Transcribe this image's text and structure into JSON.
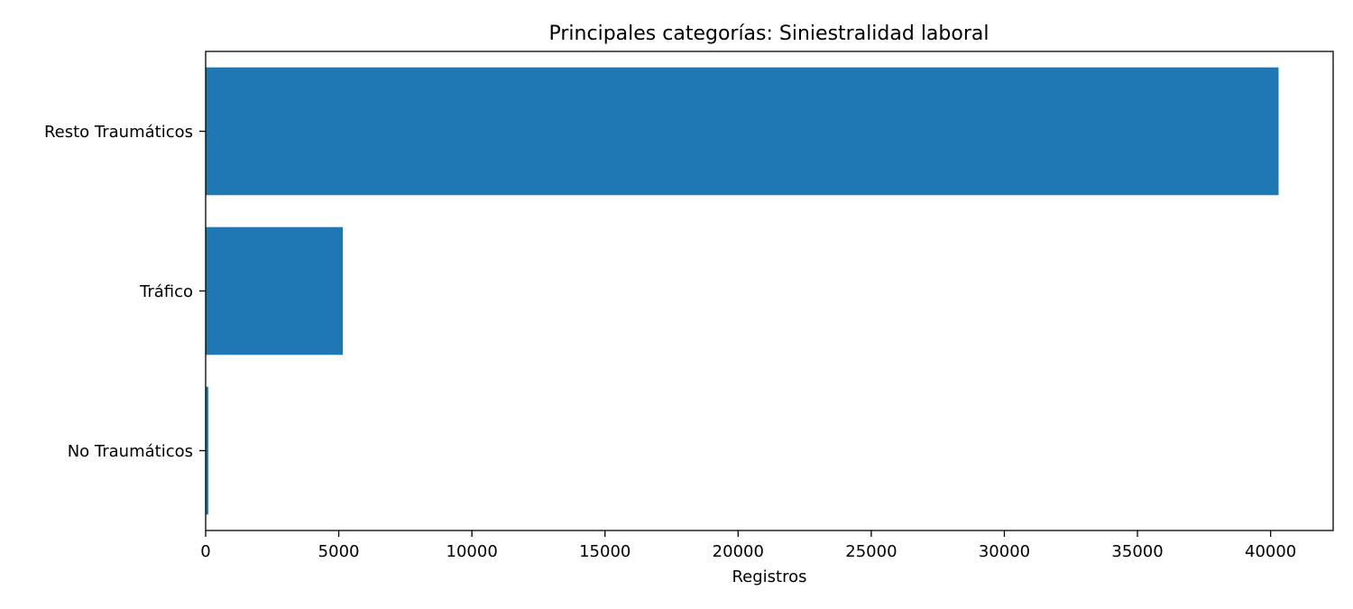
{
  "chart_data": {
    "type": "bar",
    "orientation": "horizontal",
    "title": "Principales categorías: Siniestralidad laboral",
    "xlabel": "Registros",
    "ylabel": "",
    "categories": [
      "Resto Traumáticos",
      "Tráfico",
      "No Traumáticos"
    ],
    "values": [
      40300,
      5150,
      100
    ],
    "xlim": [
      0,
      42350
    ],
    "xticks": [
      0,
      5000,
      10000,
      15000,
      20000,
      25000,
      30000,
      35000,
      40000
    ],
    "grid": false,
    "legend": "none",
    "bar_color": "#1f77b4"
  }
}
